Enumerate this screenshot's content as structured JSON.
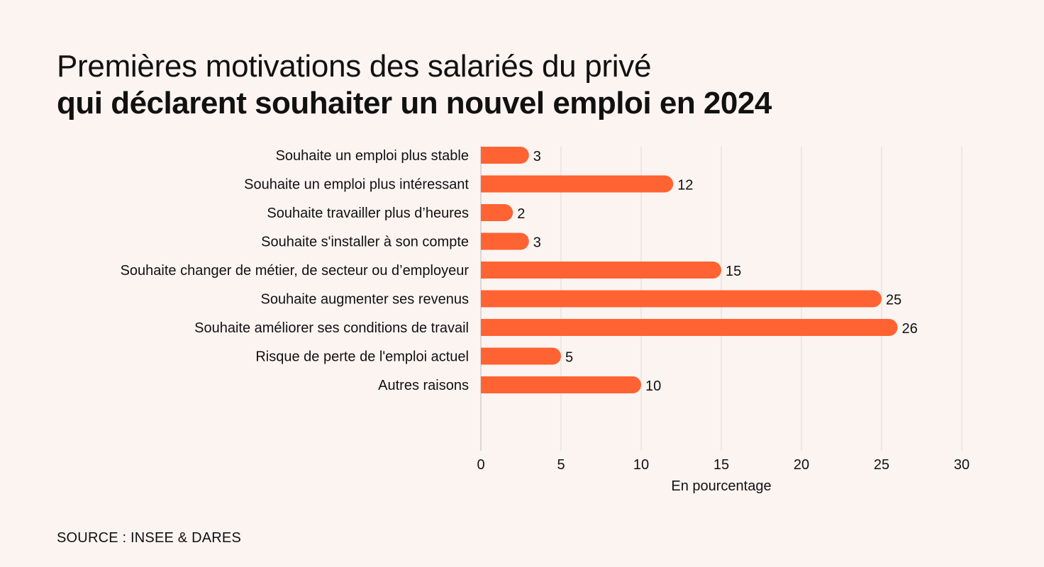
{
  "title": {
    "line1": "Premières motivations des salariés du privé",
    "line2": "qui déclarent souhaiter un nouvel emploi en 2024"
  },
  "source": "SOURCE : INSEE & DARES",
  "colors": {
    "bar": "#ff6333",
    "background": "#fcf4f1",
    "grid": "#dcdcdc",
    "text": "#111111"
  },
  "chart_data": {
    "type": "bar",
    "orientation": "horizontal",
    "categories": [
      "Souhaite un emploi plus stable",
      "Souhaite un emploi plus intéressant",
      "Souhaite travailler plus d’heures",
      "Souhaite s'installer à son compte",
      "Souhaite changer de métier, de secteur ou d’employeur",
      "Souhaite augmenter ses revenus",
      "Souhaite améliorer ses conditions de travail",
      "Risque de perte de l'emploi actuel",
      "Autres raisons"
    ],
    "values": [
      3,
      12,
      2,
      3,
      15,
      25,
      26,
      5,
      10
    ],
    "xlabel": "En pourcentage",
    "xlim": [
      0,
      30
    ],
    "xticks": [
      0,
      5,
      10,
      15,
      20,
      25,
      30
    ],
    "grid": true
  }
}
